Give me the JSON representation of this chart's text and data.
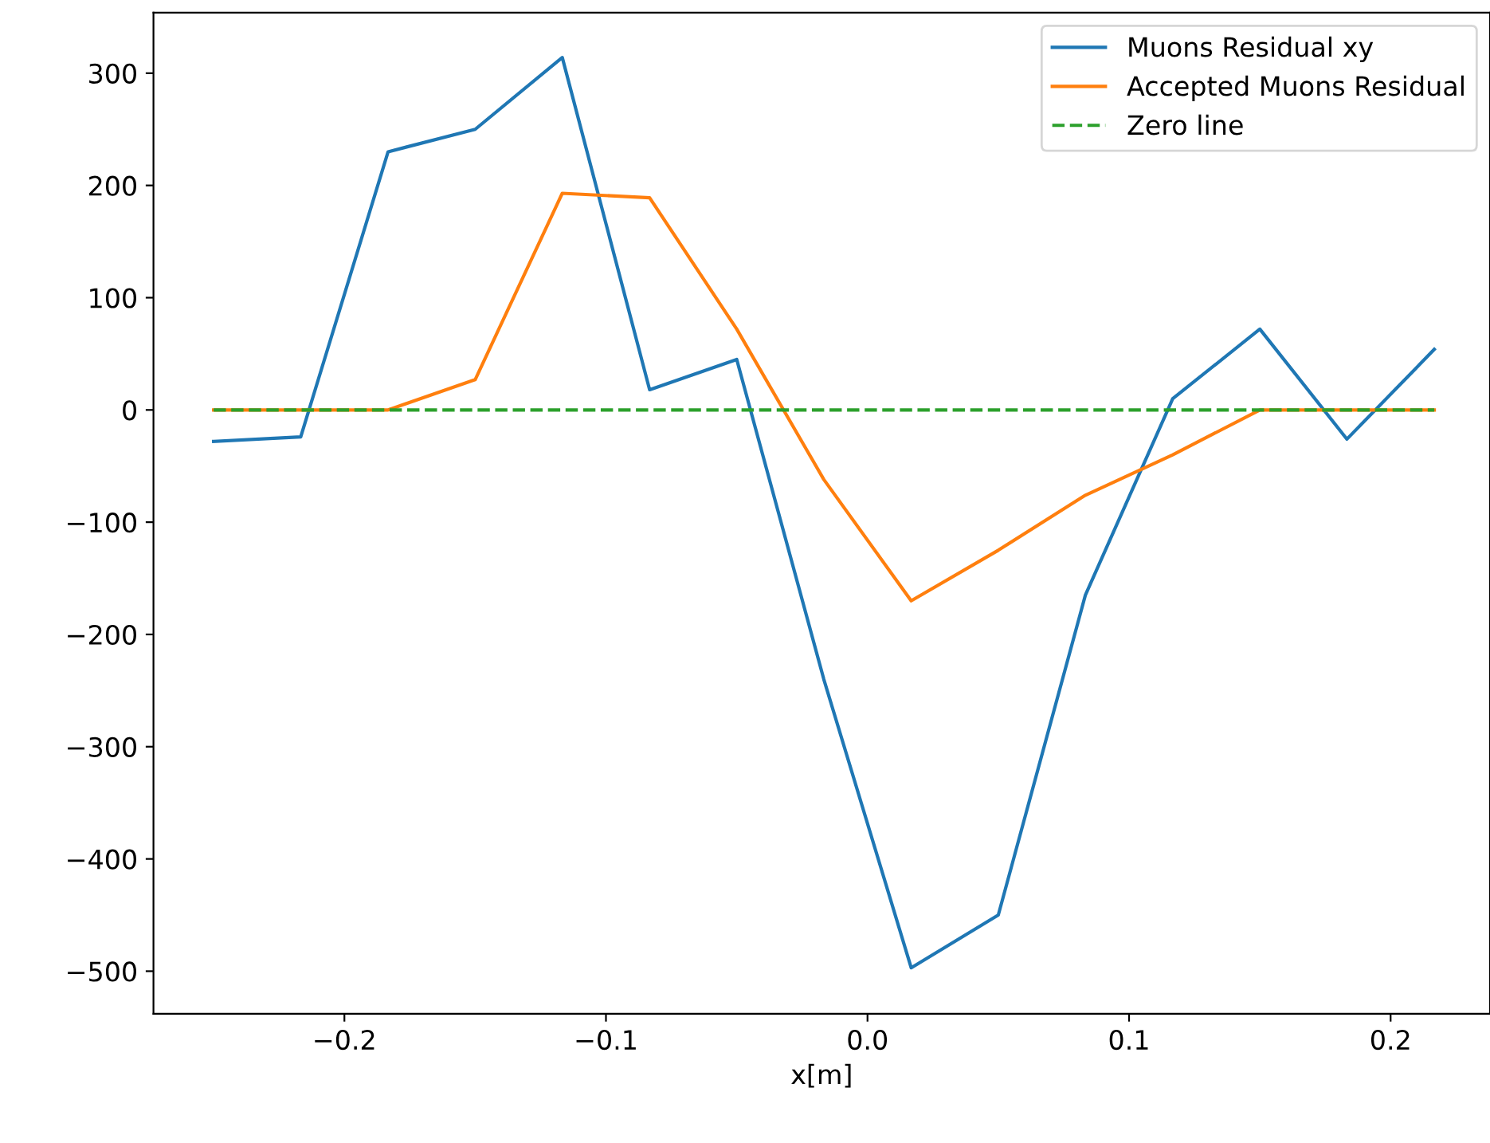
{
  "chart_data": {
    "type": "line",
    "xlabel": "x[m]",
    "x": [
      -0.25,
      -0.2167,
      -0.1833,
      -0.15,
      -0.1167,
      -0.0833,
      -0.05,
      -0.0167,
      0.0167,
      0.05,
      0.0833,
      0.1167,
      0.15,
      0.1833,
      0.2167
    ],
    "series": [
      {
        "name": "Muons Residual xy",
        "color": "#1f77b4",
        "values": [
          -28,
          -24,
          230,
          250,
          314,
          18,
          45,
          -240,
          -497,
          -450,
          -165,
          10,
          72,
          -26,
          54
        ]
      },
      {
        "name": "Accepted Muons Residual",
        "color": "#ff7f0e",
        "values": [
          0,
          0,
          0,
          27,
          193,
          189,
          72,
          -62,
          -170,
          -125,
          -76,
          -40,
          0,
          0,
          0
        ]
      },
      {
        "name": "Zero line",
        "color": "#2ca02c",
        "line_style": "dashed",
        "values": [
          0,
          0,
          0,
          0,
          0,
          0,
          0,
          0,
          0,
          0,
          0,
          0,
          0,
          0,
          0
        ]
      }
    ],
    "xlim": [
      -0.273,
      0.238
    ],
    "xticks": [
      {
        "value": -0.2,
        "label": "−0.2"
      },
      {
        "value": -0.1,
        "label": "−0.1"
      },
      {
        "value": 0.0,
        "label": "0.0"
      },
      {
        "value": 0.1,
        "label": "0.1"
      },
      {
        "value": 0.2,
        "label": "0.2"
      }
    ],
    "ylim": [
      -538,
      354
    ],
    "yticks": [
      {
        "value": -500,
        "label": "−500"
      },
      {
        "value": -400,
        "label": "−400"
      },
      {
        "value": -300,
        "label": "−300"
      },
      {
        "value": -200,
        "label": "−200"
      },
      {
        "value": -100,
        "label": "−100"
      },
      0,
      100,
      200,
      300
    ],
    "legend": "top right",
    "grid": false
  }
}
